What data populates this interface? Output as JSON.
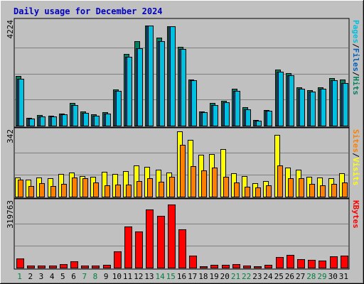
{
  "chart_data": {
    "type": "bar",
    "title": "Daily usage for December 2024",
    "categories": [
      "1",
      "2",
      "3",
      "4",
      "5",
      "6",
      "7",
      "8",
      "9",
      "10",
      "11",
      "12",
      "13",
      "14",
      "15",
      "16",
      "17",
      "18",
      "19",
      "20",
      "21",
      "22",
      "23",
      "24",
      "25",
      "26",
      "27",
      "28",
      "29",
      "30",
      "31"
    ],
    "weekend_days": [
      "1",
      "7",
      "8",
      "14",
      "15",
      "21",
      "22",
      "28",
      "29"
    ],
    "panels": [
      {
        "id": "hits",
        "max_label": "4224",
        "ylim": [
          0,
          4224
        ],
        "axis_label": [
          {
            "text": "Pages",
            "color": "#00c0e0"
          },
          {
            "text": "/",
            "color": "#000000"
          },
          {
            "text": "Files",
            "color": "#0060c0"
          },
          {
            "text": "/",
            "color": "#000000"
          },
          {
            "text": "Hits",
            "color": "#008060"
          }
        ],
        "series": [
          {
            "name": "Hits",
            "color": "#008060",
            "values": [
              2010,
              330,
              420,
              400,
              500,
              930,
              580,
              470,
              540,
              1460,
              2890,
              3420,
              4060,
              3560,
              4020,
              3200,
              1880,
              580,
              920,
              1020,
              1490,
              740,
              230,
              640,
              2260,
              2120,
              1560,
              1450,
              1540,
              1930,
              1870
            ]
          },
          {
            "name": "Files",
            "color": "#0060c0",
            "values": [
              1910,
              290,
              380,
              360,
              450,
              830,
              530,
              400,
              500,
              1400,
              2780,
              3140,
              4040,
              3430,
              4010,
              3110,
              1830,
              540,
              820,
              950,
              1400,
              670,
              190,
              590,
              2180,
              2040,
              1480,
              1380,
              1480,
              1830,
              1730
            ]
          },
          {
            "name": "Pages",
            "color": "#00c0e0",
            "values": [
              1910,
              290,
              380,
              360,
              450,
              830,
              530,
              400,
              500,
              1400,
              2780,
              3140,
              4040,
              3430,
              4010,
              3110,
              1830,
              540,
              820,
              950,
              1400,
              670,
              190,
              590,
              2180,
              2040,
              1480,
              1380,
              1480,
              1830,
              1730
            ]
          }
        ]
      },
      {
        "id": "visits",
        "max_label": "342",
        "ylim": [
          0,
          342
        ],
        "axis_label": [
          {
            "text": "Sites",
            "color": "#ff8000"
          },
          {
            "text": "/",
            "color": "#000000"
          },
          {
            "text": "Visits",
            "color": "#ffff00"
          }
        ],
        "series": [
          {
            "name": "Visits",
            "color": "#ffff00",
            "values": [
              100,
              90,
              98,
              96,
              116,
              124,
              108,
              104,
              128,
              116,
              132,
              160,
              156,
              140,
              126,
              340,
              296,
              218,
              222,
              246,
              120,
              106,
              70,
              82,
              320,
              150,
              140,
              102,
              100,
              96,
              120
            ]
          },
          {
            "name": "Sites",
            "color": "#ff8000",
            "values": [
              90,
              56,
              70,
              56,
              66,
              100,
              96,
              74,
              58,
              62,
              64,
              80,
              96,
              76,
              102,
              270,
              158,
              136,
              152,
              104,
              74,
              50,
              48,
              60,
              162,
              94,
              94,
              66,
              58,
              66,
              72
            ]
          }
        ]
      },
      {
        "id": "kbytes",
        "max_label": "319763",
        "ylim": [
          0,
          319763
        ],
        "axis_label": [
          {
            "text": "KBytes",
            "color": "#ff0000"
          }
        ],
        "series": [
          {
            "name": "KBytes",
            "color": "#ff0000",
            "values": [
              43000,
              11000,
              11000,
              11000,
              18000,
              30000,
              10000,
              10000,
              14000,
              80000,
              200000,
              176000,
              282000,
              250000,
              307000,
              186000,
              58000,
              8000,
              14000,
              14000,
              18000,
              10000,
              7000,
              14000,
              50000,
              62000,
              42000,
              38000,
              35000,
              54000,
              60000
            ]
          }
        ]
      }
    ]
  }
}
